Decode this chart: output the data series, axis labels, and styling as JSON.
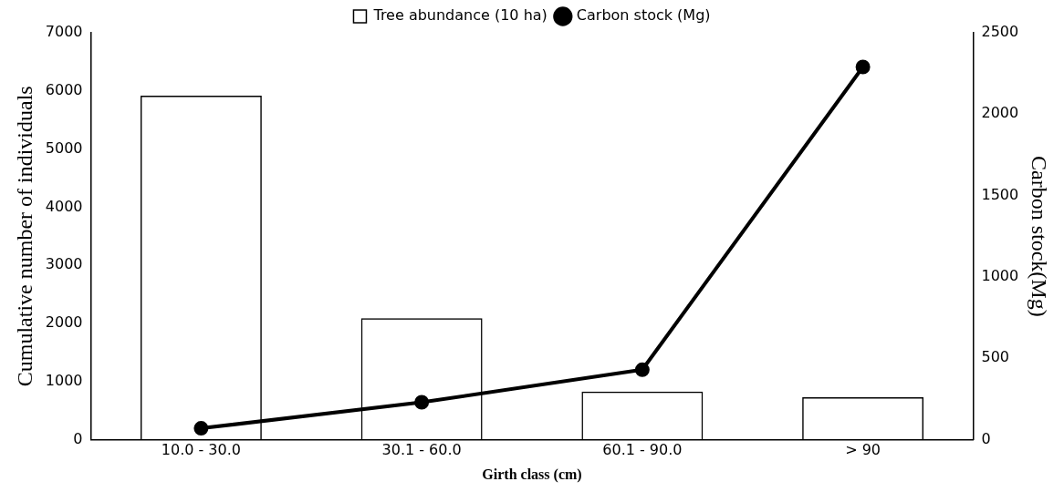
{
  "chart_data": {
    "type": "bar",
    "xlabel": "Girth class (cm)",
    "ylabel": "Cumulative number of individuals",
    "y2label": "Carbon stock(Mg)",
    "categories": [
      "10.0 - 30.0",
      "30.1 - 60.0",
      "60.1 - 90.0",
      "> 90"
    ],
    "series": [
      {
        "name": "Tree abundance (10 ha)",
        "color": "#000000",
        "values": [
          5920,
          2090,
          830,
          730
        ]
      },
      {
        "name": "Carbon stock (Mg)",
        "type": "line",
        "axis": "y2",
        "color": "#000000",
        "values": [
          70,
          230,
          430,
          2290
        ]
      }
    ],
    "ylim": [
      0,
      7000
    ],
    "yticks": [
      0,
      1000,
      2000,
      3000,
      4000,
      5000,
      6000,
      7000
    ],
    "y2lim": [
      0,
      2500
    ],
    "y2ticks": [
      0,
      500,
      1000,
      1500,
      2000,
      2500
    ],
    "legend": "top",
    "marker": "circle",
    "line_style": "solid",
    "grid": false
  }
}
